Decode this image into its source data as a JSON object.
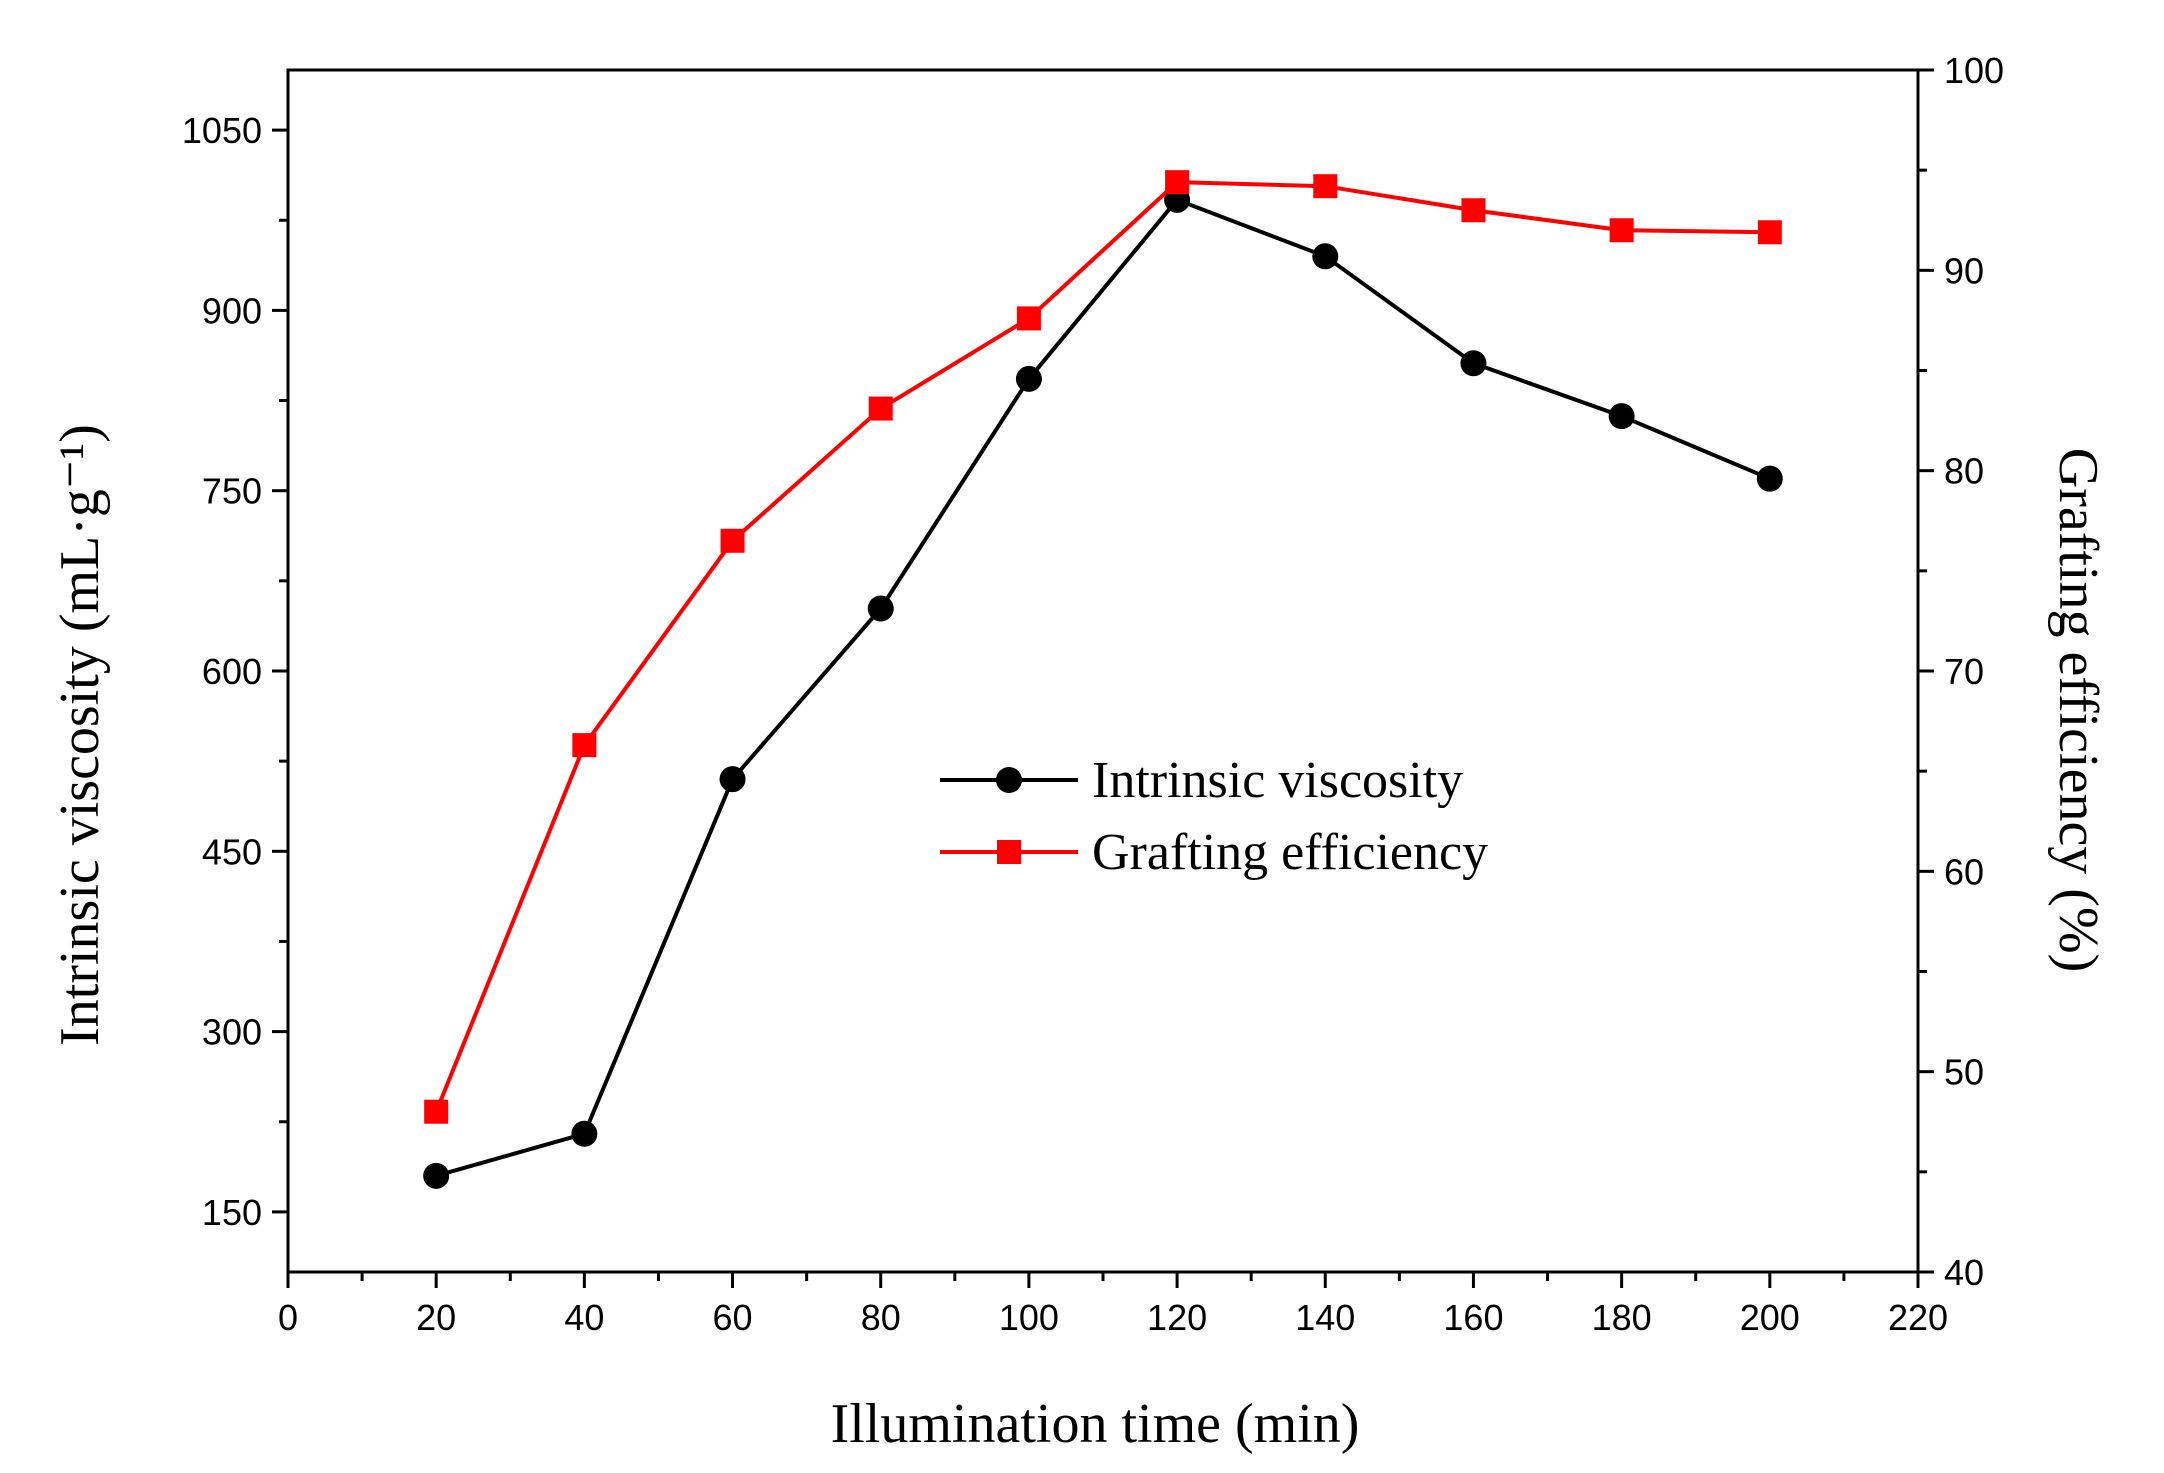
{
  "chart_data": {
    "type": "line",
    "title": "",
    "xlabel": "Illumination time (min)",
    "ylabel_left": "Intrinsic viscosity (mL·g⁻¹)",
    "ylabel_right": "Grafting efficiency (%)",
    "xlim": [
      0,
      220
    ],
    "ylim_left": [
      100,
      1100
    ],
    "ylim_right": [
      40,
      100
    ],
    "x_ticks": [
      0,
      20,
      40,
      60,
      80,
      100,
      120,
      140,
      160,
      180,
      200,
      220
    ],
    "y_left_ticks": [
      150,
      300,
      450,
      600,
      750,
      900,
      1050
    ],
    "y_right_ticks": [
      40,
      50,
      60,
      70,
      80,
      90,
      100
    ],
    "x": [
      20,
      40,
      60,
      80,
      100,
      120,
      140,
      160,
      180,
      200
    ],
    "series": [
      {
        "name": "Intrinsic viscosity",
        "axis": "left",
        "marker": "circle",
        "color": "#000000",
        "values": [
          180,
          215,
          510,
          652,
          843,
          992,
          945,
          856,
          812,
          760
        ]
      },
      {
        "name": "Grafting efficiency",
        "axis": "right",
        "marker": "square",
        "color": "#ff0000",
        "values": [
          48.0,
          66.3,
          76.5,
          83.1,
          87.6,
          94.4,
          94.2,
          93.0,
          92.0,
          91.9
        ]
      }
    ],
    "legend_position": "center",
    "grid": false
  }
}
